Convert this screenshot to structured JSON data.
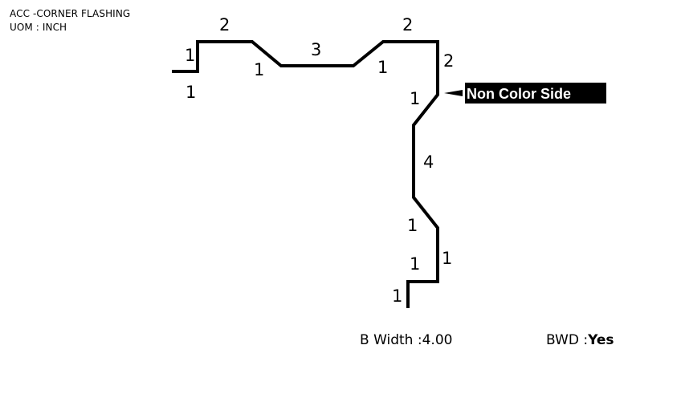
{
  "header": {
    "title": "ACC -CORNER FLASHING",
    "uom": "UOM : INCH"
  },
  "profile": {
    "dimensions": [
      "1",
      "1",
      "2",
      "1",
      "3",
      "1",
      "2",
      "2",
      "1",
      "4",
      "1",
      "1",
      "1",
      "1"
    ],
    "side_label": "Non Color Side",
    "colors": {
      "line": "#000000",
      "tag_background": "#000000",
      "tag_text": "#ffffff"
    }
  },
  "footer": {
    "b_width_label": "B Width :",
    "b_width_value": "4.00",
    "bwd_label": "BWD :",
    "bwd_value": "Yes"
  }
}
